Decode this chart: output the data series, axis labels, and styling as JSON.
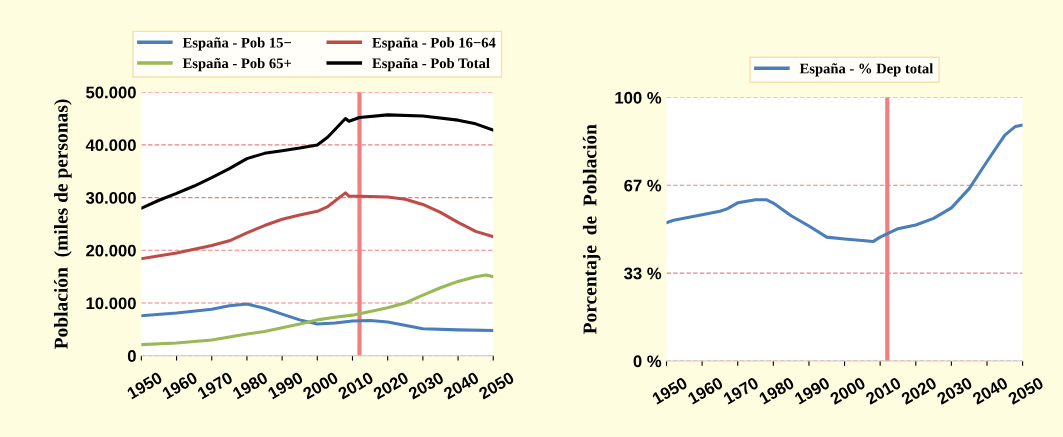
{
  "chart_data": [
    {
      "type": "line",
      "ylabel": "Población  (miles de personas)",
      "legend": "top",
      "grid": "y",
      "line_style": "solid",
      "marker": "none",
      "xlim": [
        1950,
        2050
      ],
      "xticks": [
        1950,
        1960,
        1970,
        1980,
        1990,
        2000,
        2010,
        2020,
        2030,
        2040,
        2050
      ],
      "ylim": [
        0,
        50000
      ],
      "yticks": [
        0,
        {
          "value": 10000,
          "label": "10.000"
        },
        {
          "value": 20000,
          "label": "20.000"
        },
        {
          "value": 30000,
          "label": "30.000"
        },
        {
          "value": 40000,
          "label": "40.000"
        },
        {
          "value": 50000,
          "label": "50.000"
        }
      ],
      "ref_lines": [
        {
          "axis": "x",
          "value": 2012,
          "color": "#f07f7f"
        }
      ],
      "series": [
        {
          "name": "España - Pob 15−",
          "color": "#4a7ebb",
          "x": [
            1950,
            1960,
            1970,
            1975,
            1980,
            1985,
            1990,
            1995,
            2000,
            2005,
            2010,
            2015,
            2020,
            2030,
            2040,
            2050
          ],
          "values": [
            7600,
            8100,
            8800,
            9500,
            9800,
            9000,
            7900,
            6800,
            6000,
            6200,
            6600,
            6700,
            6400,
            5100,
            4900,
            4800
          ]
        },
        {
          "name": "España - Pob 16−64",
          "color": "#be4b48",
          "x": [
            1950,
            1960,
            1970,
            1975,
            1980,
            1985,
            1990,
            1995,
            2000,
            2003,
            2008,
            2009,
            2015,
            2020,
            2025,
            2030,
            2035,
            2040,
            2045,
            2050
          ],
          "values": [
            18400,
            19500,
            20900,
            21800,
            23300,
            24700,
            25900,
            26700,
            27400,
            28300,
            30900,
            30300,
            30200,
            30100,
            29700,
            28700,
            27200,
            25300,
            23600,
            22600
          ]
        },
        {
          "name": "España - Pob 65+",
          "color": "#98b954",
          "x": [
            1950,
            1960,
            1970,
            1980,
            1985,
            1990,
            1995,
            2000,
            2005,
            2010,
            2015,
            2020,
            2025,
            2030,
            2035,
            2040,
            2045,
            2048,
            2050
          ],
          "values": [
            2100,
            2400,
            3000,
            4100,
            4600,
            5300,
            6000,
            6800,
            7300,
            7700,
            8400,
            9100,
            10000,
            11500,
            12900,
            14100,
            15000,
            15300,
            15000
          ]
        },
        {
          "name": "España - Pob Total",
          "color": "#000000",
          "x": [
            1950,
            1955,
            1960,
            1965,
            1970,
            1975,
            1980,
            1985,
            1990,
            1995,
            2000,
            2003,
            2008,
            2009,
            2012,
            2020,
            2030,
            2040,
            2045,
            2050
          ],
          "values": [
            28000,
            29500,
            30800,
            32200,
            33800,
            35500,
            37400,
            38400,
            38900,
            39400,
            40000,
            41500,
            45000,
            44500,
            45200,
            45700,
            45500,
            44700,
            44000,
            42800
          ]
        }
      ]
    },
    {
      "type": "line",
      "ylabel": "Porcentaje  de  Población",
      "legend": "top",
      "grid": "y",
      "line_style": "solid",
      "marker": "none",
      "xlim": [
        1950,
        2050
      ],
      "xticks": [
        1950,
        1960,
        1970,
        1980,
        1990,
        2000,
        2010,
        2020,
        2030,
        2040,
        2050
      ],
      "ylim": [
        0,
        100
      ],
      "yticks": [
        {
          "value": 0,
          "label": "0 %"
        },
        {
          "value": 33.33,
          "label": "33 %"
        },
        {
          "value": 66.67,
          "label": "67 %"
        },
        {
          "value": 100,
          "label": "100 %"
        }
      ],
      "ref_lines": [
        {
          "axis": "x",
          "value": 2012,
          "color": "#f07f7f"
        }
      ],
      "series": [
        {
          "name": "España - % Dep total",
          "color": "#4a7ebb",
          "x": [
            1950,
            1952,
            1960,
            1965,
            1967,
            1970,
            1975,
            1978,
            1980,
            1985,
            1990,
            1995,
            2000,
            2005,
            2008,
            2010,
            2015,
            2020,
            2025,
            2030,
            2035,
            2040,
            2045,
            2048,
            2050
          ],
          "values": [
            52.5,
            53.4,
            55.5,
            56.8,
            57.7,
            60.0,
            61.2,
            61.2,
            59.9,
            55.1,
            51.2,
            47.0,
            46.3,
            45.7,
            45.3,
            47.0,
            50.2,
            51.6,
            54.1,
            58.1,
            65.4,
            75.7,
            85.7,
            89.0,
            89.5
          ]
        }
      ]
    }
  ]
}
